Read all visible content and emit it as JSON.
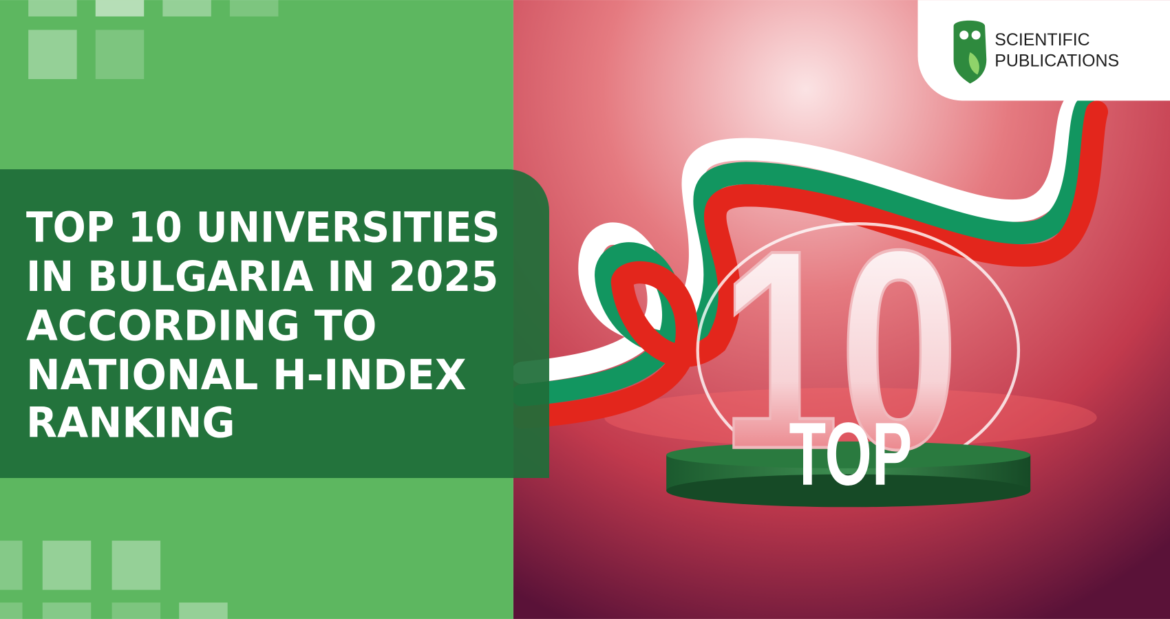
{
  "headline": {
    "lines": [
      "TOP 10 UNIVERSITIES",
      "IN BULGARIA IN 2025",
      "ACCORDING TO",
      "NATIONAL H-INDEX",
      "RANKING"
    ]
  },
  "logo": {
    "line1": "SCIENTIFIC",
    "line2": "PUBLICATIONS"
  },
  "graphic": {
    "number": "10",
    "label": "TOP"
  }
}
